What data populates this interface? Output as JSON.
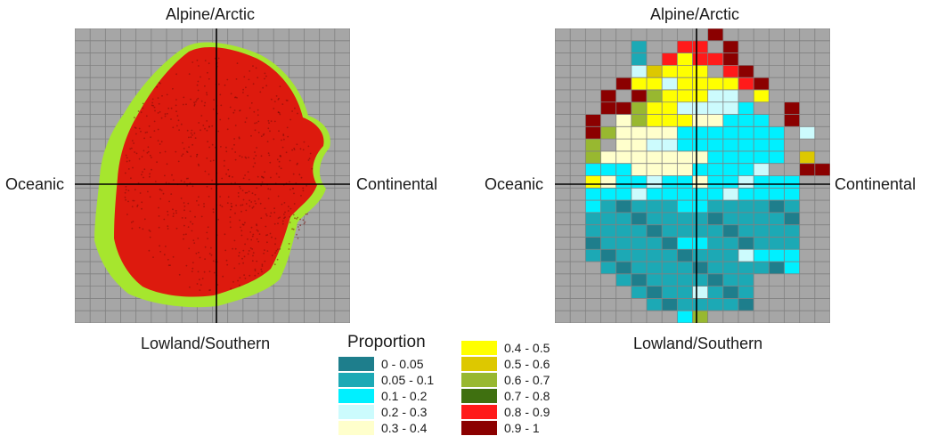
{
  "panels": [
    {
      "id": "scatter",
      "axes": {
        "top": "Alpine/Arctic",
        "bottom": "Lowland/Southern",
        "left": "Oceanic",
        "right": "Continental"
      }
    },
    {
      "id": "grid",
      "axes": {
        "top": "Alpine/Arctic",
        "bottom": "Lowland/Southern",
        "left": "Oceanic",
        "right": "Continental"
      }
    }
  ],
  "scatter_colors": {
    "background_points": "#a6e62e",
    "foreground_points": "#dd1a0e",
    "grid_fill": "#a6a6a6",
    "grid_line": "#808080"
  },
  "legend": {
    "title": "Proportion",
    "items": [
      {
        "label": "0 - 0.05",
        "color": "#1e7e8c"
      },
      {
        "label": "0.05 - 0.1",
        "color": "#1ca9b5"
      },
      {
        "label": "0.1 - 0.2",
        "color": "#00f0ff"
      },
      {
        "label": "0.2 - 0.3",
        "color": "#ccfbfd"
      },
      {
        "label": "0.3 - 0.4",
        "color": "#ffffcc"
      },
      {
        "label": "0.4 - 0.5",
        "color": "#ffff00"
      },
      {
        "label": "0.5 - 0.6",
        "color": "#ddc800"
      },
      {
        "label": "0.6 - 0.7",
        "color": "#98b830"
      },
      {
        "label": "0.7 - 0.8",
        "color": "#3f7010"
      },
      {
        "label": "0.8 - 0.9",
        "color": "#ff1a1a"
      },
      {
        "label": "0.9 - 1",
        "color": "#8b0000"
      }
    ]
  },
  "grid_rows": [
    "..........9.......",
    ".....1..88.9......",
    ".....1.85889......",
    ".....46555.89.....",
    "....9554555589....",
    "...9.9755544.5....",
    "...9975544442..9..",
    "..9.3755533222.9..",
    "..9733332222222.4.",
    "..7.33442222222...",
    "..7333333322222.6.",
    "..222333322222..99",
    "..53222223222222..",
    "..22222222222222..",
    "..21111122111111..",
    "..11111111111111..",
    "..11111111111111..",
    "..11111122111111..",
    "..11111111112222..",
    "...1111111111112..",
    "....111111111.....",
    ".....11112111.....",
    "......1111111.....",
    "........27........"
  ]
}
